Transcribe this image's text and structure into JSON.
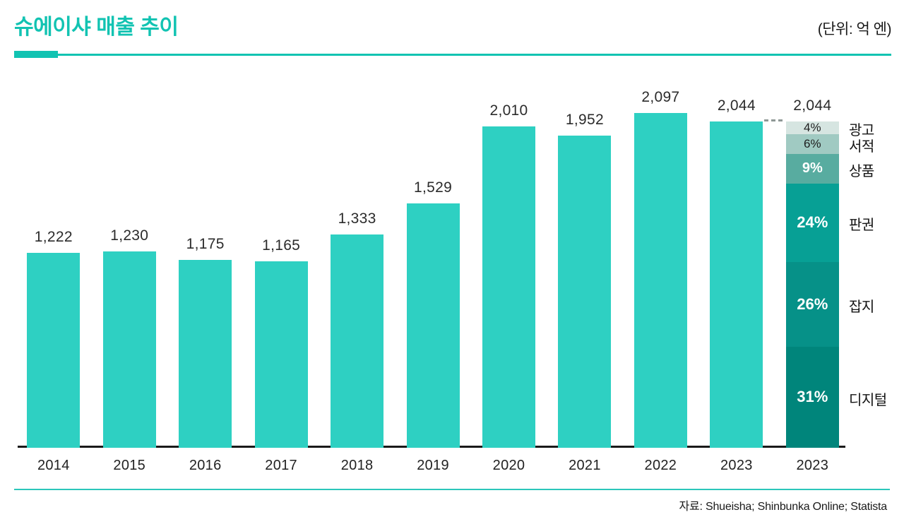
{
  "header": {
    "title": "슈에이샤 매출 추이",
    "unit_label": "(단위: 억 엔)"
  },
  "footer": {
    "source": "자료: Shueisha; Shinbunka Online; Statista"
  },
  "colors": {
    "accent": "#12c3b2",
    "bar": "#2ed0c2",
    "axis": "#1a1a1a",
    "label_text": "#2b2b2b",
    "dash": "#8f9896"
  },
  "chart_data": {
    "type": "bar",
    "title": "슈에이샤 매출 추이",
    "unit": "억 엔",
    "xlabel": "",
    "ylabel": "",
    "ylim": [
      0,
      2100
    ],
    "grid": false,
    "legend": "none",
    "categories": [
      "2014",
      "2015",
      "2016",
      "2017",
      "2018",
      "2019",
      "2020",
      "2021",
      "2022",
      "2023",
      "2023"
    ],
    "values": [
      1222,
      1230,
      1175,
      1165,
      1333,
      1529,
      2010,
      1952,
      2097,
      2044,
      2044
    ],
    "value_labels": [
      "1,222",
      "1,230",
      "1,175",
      "1,165",
      "1,333",
      "1,529",
      "2,010",
      "1,952",
      "2,097",
      "2,044",
      "2,044"
    ],
    "stacked_bar": {
      "category": "2023",
      "total": 2044,
      "total_label": "2,044",
      "segments": [
        {
          "label": "광고",
          "pct": 4,
          "pct_label": "4%",
          "color": "#d6e5e1",
          "text_color": "#1e1e1e"
        },
        {
          "label": "서적",
          "pct": 6,
          "pct_label": "6%",
          "color": "#a0cac2",
          "text_color": "#1e1e1e"
        },
        {
          "label": "상품",
          "pct": 9,
          "pct_label": "9%",
          "color": "#58aca0",
          "text_color": "#ffffff"
        },
        {
          "label": "판권",
          "pct": 24,
          "pct_label": "24%",
          "color": "#07a095",
          "text_color": "#ffffff"
        },
        {
          "label": "잡지",
          "pct": 26,
          "pct_label": "26%",
          "color": "#069188",
          "text_color": "#ffffff"
        },
        {
          "label": "디지털",
          "pct": 31,
          "pct_label": "31%",
          "color": "#00857b",
          "text_color": "#ffffff"
        }
      ]
    }
  }
}
